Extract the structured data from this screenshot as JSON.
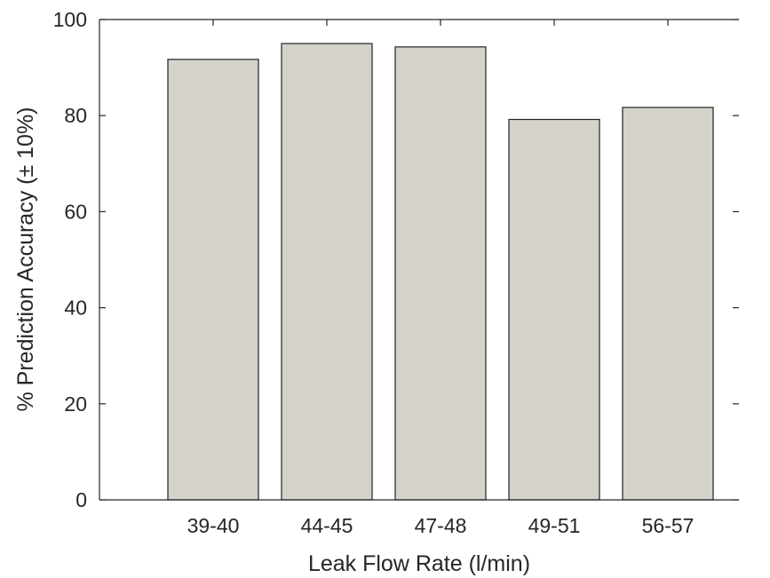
{
  "chart_data": {
    "type": "bar",
    "title": "",
    "xlabel": "Leak Flow Rate (l/min)",
    "ylabel": "% Prediction Accuracy (± 10%)",
    "categories": [
      "39-40",
      "44-45",
      "47-48",
      "49-51",
      "56-57"
    ],
    "values": [
      91.7,
      95.0,
      94.3,
      79.2,
      81.7
    ],
    "ylim": [
      0,
      100
    ],
    "yticks": [
      "0",
      "20",
      "40",
      "60",
      "80",
      "100"
    ],
    "grid": false,
    "legend": "none",
    "bar_color": "#d5d2cb",
    "edge_color": "#222222"
  }
}
